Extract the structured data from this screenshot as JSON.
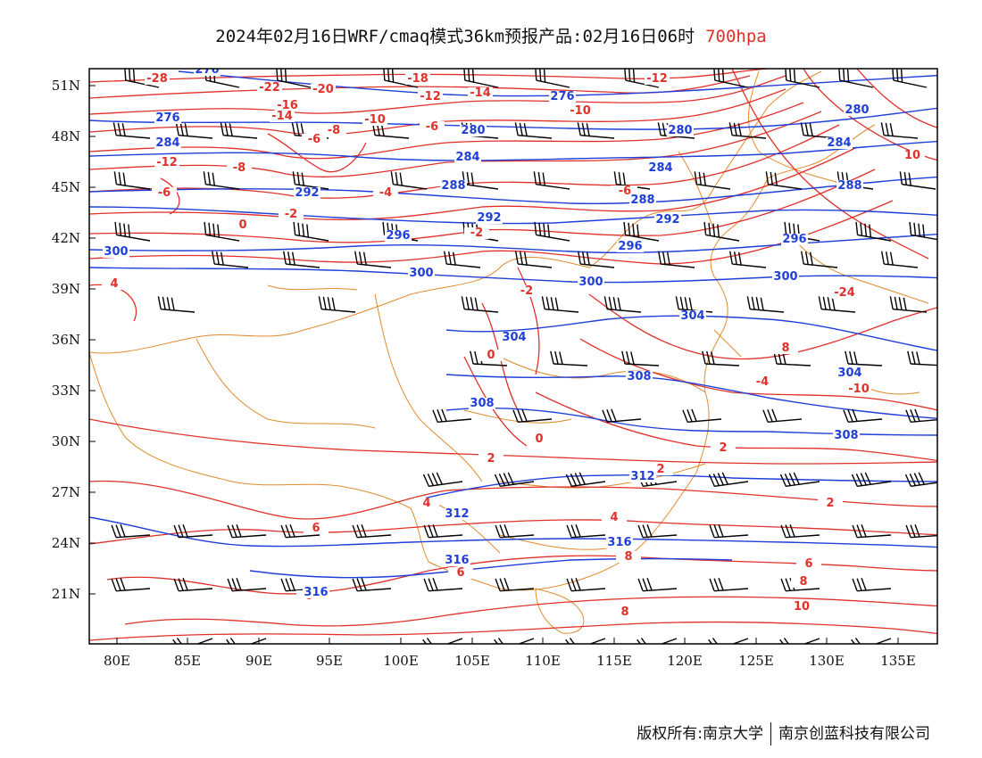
{
  "title": {
    "main": "2024年02月16日WRF/cmaq模式36km预报产品:02月16日06时",
    "level": "700hpa"
  },
  "axes": {
    "lat_labels": [
      "51N",
      "48N",
      "45N",
      "42N",
      "39N",
      "36N",
      "33N",
      "30N",
      "27N",
      "24N",
      "21N"
    ],
    "lon_labels": [
      "80E",
      "85E",
      "90E",
      "95E",
      "100E",
      "105E",
      "110E",
      "115E",
      "120E",
      "125E",
      "130E",
      "135E"
    ]
  },
  "colors": {
    "temperature_contour": "#e0302a",
    "height_contour": "#1f3fd8",
    "border": "#e08a2c",
    "wind_barb": "#000000"
  },
  "temperature_labels": [
    "-28",
    "-22",
    "-20",
    "-18",
    "-16",
    "-14",
    "-14",
    "-12",
    "-12",
    "-12",
    "-10",
    "-10",
    "-8",
    "-8",
    "-6",
    "-6",
    "-6",
    "-4",
    "-4",
    "-2",
    "-2",
    "-2",
    "0",
    "0",
    "0",
    "2",
    "2",
    "2",
    "4",
    "4",
    "4",
    "6",
    "6",
    "6",
    "8",
    "8",
    "10",
    "10",
    "-24",
    "-10",
    "-4",
    "-6",
    "8",
    "2",
    "6",
    "8"
  ],
  "height_labels": [
    "276",
    "280",
    "280",
    "284",
    "284",
    "284",
    "288",
    "288",
    "288",
    "292",
    "292",
    "292",
    "296",
    "296",
    "296",
    "300",
    "300",
    "300",
    "300",
    "304",
    "304",
    "304",
    "308",
    "308",
    "308",
    "312",
    "312",
    "316",
    "316",
    "316",
    "284",
    "280",
    "276",
    "276"
  ],
  "footer": {
    "copyright": "版权所有:南京大学",
    "company": "南京创蓝科技有限公司"
  }
}
